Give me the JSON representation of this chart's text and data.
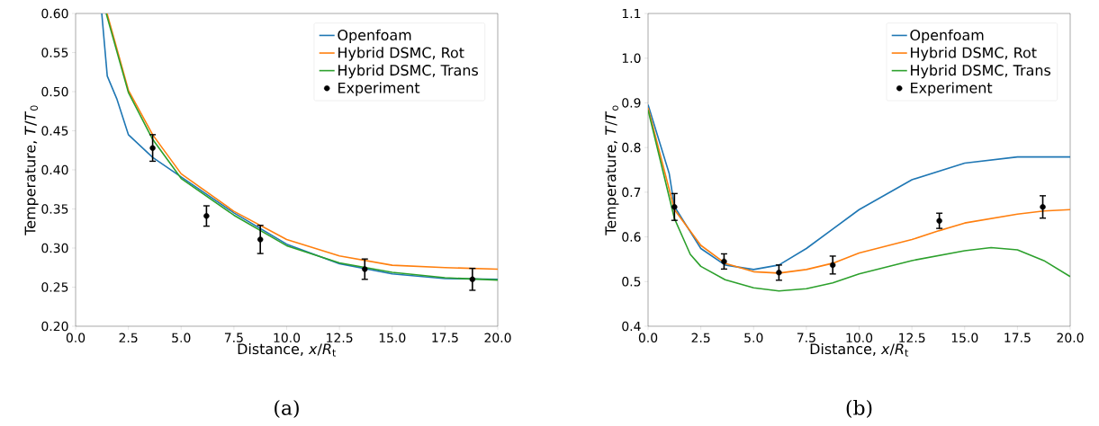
{
  "chart_data": [
    {
      "type": "line",
      "xlabel": "Distance, *x*/*R*$_{t}$",
      "ylabel": "Temperature, *T*/*T*$_{0}$",
      "legend": "top right",
      "xlim": [
        0,
        20
      ],
      "ylim": [
        0.2,
        0.6
      ],
      "xticks": [
        {
          "value": 0,
          "label": "0.0"
        },
        {
          "value": 2.5,
          "label": "2.5"
        },
        {
          "value": 5,
          "label": "5.0"
        },
        {
          "value": 7.5,
          "label": "7.5"
        },
        {
          "value": 10,
          "label": "10.0"
        },
        {
          "value": 12.5,
          "label": "12.5"
        },
        {
          "value": 15,
          "label": "15.0"
        },
        {
          "value": 17.5,
          "label": "17.5"
        },
        {
          "value": 20,
          "label": "20.0"
        }
      ],
      "yticks": [
        {
          "value": 0.2,
          "label": "0.20"
        },
        {
          "value": 0.25,
          "label": "0.25"
        },
        {
          "value": 0.3,
          "label": "0.30"
        },
        {
          "value": 0.35,
          "label": "0.35"
        },
        {
          "value": 0.4,
          "label": "0.40"
        },
        {
          "value": 0.45,
          "label": "0.45"
        },
        {
          "value": 0.5,
          "label": "0.50"
        },
        {
          "value": 0.55,
          "label": "0.55"
        },
        {
          "value": 0.6,
          "label": "0.60"
        }
      ],
      "annotations": [
        "(a)"
      ],
      "series": [
        {
          "name": "Openfoam",
          "color": "#1f77b4",
          "marker": "none",
          "x": [
            1.24,
            1.5,
            1.95,
            2.5,
            3.65,
            5,
            7.5,
            10,
            12.5,
            15,
            17.5,
            20
          ],
          "values": [
            0.6,
            0.52,
            0.491,
            0.445,
            0.416,
            0.391,
            0.345,
            0.305,
            0.28,
            0.267,
            0.261,
            0.26
          ]
        },
        {
          "name": "Hybrid DSMC, Rot",
          "color": "#ff7f0e",
          "marker": "none",
          "x": [
            1.49,
            2.5,
            3.65,
            5,
            7.5,
            10,
            12.5,
            15,
            17.5,
            20
          ],
          "values": [
            0.6,
            0.502,
            0.445,
            0.395,
            0.347,
            0.311,
            0.29,
            0.278,
            0.275,
            0.273
          ]
        },
        {
          "name": "Hybrid DSMC, Trans",
          "color": "#2ca02c",
          "marker": "none",
          "x": [
            1.45,
            2.5,
            3.65,
            5,
            7.5,
            10,
            12.5,
            15,
            17.5,
            20
          ],
          "values": [
            0.6,
            0.499,
            0.439,
            0.389,
            0.342,
            0.303,
            0.281,
            0.269,
            0.262,
            0.259
          ]
        },
        {
          "name": "Experiment",
          "type": "scatter",
          "color": "#000000",
          "marker": "circle",
          "x": [
            3.65,
            6.2,
            8.75,
            13.7,
            18.8
          ],
          "values": [
            0.428,
            0.341,
            0.311,
            0.273,
            0.26
          ],
          "errors": [
            0.017,
            0.013,
            0.018,
            0.013,
            0.014
          ]
        }
      ]
    },
    {
      "type": "line",
      "xlabel": "Distance, *x*/*R*$_{t}$",
      "ylabel": "Temperature, *T*/*T*$_{o}$",
      "legend": "top right",
      "xlim": [
        0,
        20
      ],
      "ylim": [
        0.4,
        1.1
      ],
      "xticks": [
        {
          "value": 0,
          "label": "0.0"
        },
        {
          "value": 2.5,
          "label": "2.5"
        },
        {
          "value": 5,
          "label": "5.0"
        },
        {
          "value": 7.5,
          "label": "7.5"
        },
        {
          "value": 10,
          "label": "10.0"
        },
        {
          "value": 12.5,
          "label": "12.5"
        },
        {
          "value": 15,
          "label": "15.0"
        },
        {
          "value": 17.5,
          "label": "17.5"
        },
        {
          "value": 20,
          "label": "20.0"
        }
      ],
      "yticks": [
        {
          "value": 0.4,
          "label": "0.4"
        },
        {
          "value": 0.5,
          "label": "0.5"
        },
        {
          "value": 0.6,
          "label": "0.6"
        },
        {
          "value": 0.7,
          "label": "0.7"
        },
        {
          "value": 0.8,
          "label": "0.8"
        },
        {
          "value": 0.9,
          "label": "0.9"
        },
        {
          "value": 1.0,
          "label": "1.0"
        },
        {
          "value": 1.1,
          "label": "1.1"
        }
      ],
      "annotations": [
        "(b)"
      ],
      "series": [
        {
          "name": "Openfoam",
          "color": "#1f77b4",
          "marker": "none",
          "x": [
            0,
            1,
            1.25,
            2.5,
            3.65,
            5,
            6.2,
            7.5,
            10,
            12.5,
            15,
            17.5,
            20
          ],
          "values": [
            0.896,
            0.742,
            0.668,
            0.574,
            0.537,
            0.527,
            0.537,
            0.574,
            0.661,
            0.728,
            0.765,
            0.779,
            0.779
          ]
        },
        {
          "name": "Hybrid DSMC, Rot",
          "color": "#ff7f0e",
          "marker": "none",
          "x": [
            0,
            1.25,
            2.5,
            3.65,
            5,
            6.2,
            7.5,
            8.75,
            10,
            12.5,
            13.8,
            15,
            17.5,
            18.75,
            20
          ],
          "values": [
            0.889,
            0.661,
            0.581,
            0.541,
            0.522,
            0.519,
            0.527,
            0.541,
            0.564,
            0.594,
            0.614,
            0.631,
            0.651,
            0.658,
            0.661
          ]
        },
        {
          "name": "Hybrid DSMC, Trans",
          "color": "#2ca02c",
          "marker": "none",
          "x": [
            0,
            1.25,
            2,
            2.5,
            3.65,
            5,
            6.2,
            7.5,
            8.75,
            10,
            12.5,
            15,
            16.25,
            17.5,
            18.75,
            20
          ],
          "values": [
            0.884,
            0.641,
            0.561,
            0.534,
            0.504,
            0.486,
            0.479,
            0.484,
            0.497,
            0.517,
            0.547,
            0.569,
            0.576,
            0.571,
            0.547,
            0.511
          ]
        },
        {
          "name": "Experiment",
          "type": "scatter",
          "color": "#000000",
          "marker": "circle",
          "x": [
            1.25,
            3.6,
            6.2,
            8.75,
            13.8,
            18.7
          ],
          "values": [
            0.667,
            0.545,
            0.52,
            0.537,
            0.636,
            0.667
          ],
          "errors": [
            0.03,
            0.017,
            0.017,
            0.02,
            0.017,
            0.025
          ]
        }
      ]
    }
  ]
}
